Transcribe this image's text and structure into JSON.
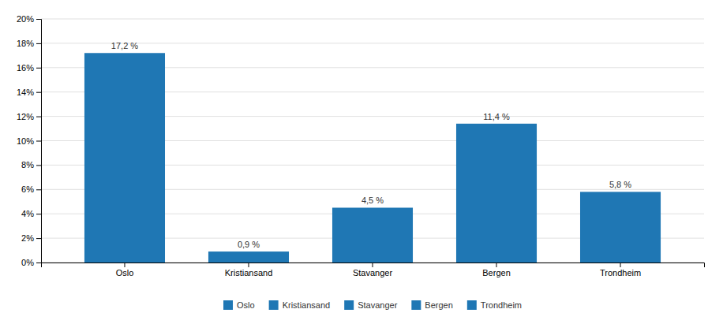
{
  "chart_data": {
    "type": "bar",
    "categories": [
      "Oslo",
      "Kristiansand",
      "Stavanger",
      "Bergen",
      "Trondheim"
    ],
    "values": [
      17.2,
      0.9,
      4.5,
      11.4,
      5.8
    ],
    "value_labels": [
      "17,2 %",
      "0,9 %",
      "4,5 %",
      "11,4 %",
      "5,8 %"
    ],
    "data_labels": true,
    "ylim": [
      0,
      20
    ],
    "yticks": [
      {
        "value": 0,
        "label": "0%"
      },
      {
        "value": 2,
        "label": "2%"
      },
      {
        "value": 4,
        "label": "4%"
      },
      {
        "value": 6,
        "label": "6%"
      },
      {
        "value": 8,
        "label": "8%"
      },
      {
        "value": 10,
        "label": "10%"
      },
      {
        "value": 12,
        "label": "12%"
      },
      {
        "value": 14,
        "label": "14%"
      },
      {
        "value": 16,
        "label": "16%"
      },
      {
        "value": 18,
        "label": "18%"
      },
      {
        "value": 20,
        "label": "20%"
      }
    ],
    "grid": true,
    "legend": "bottom"
  }
}
